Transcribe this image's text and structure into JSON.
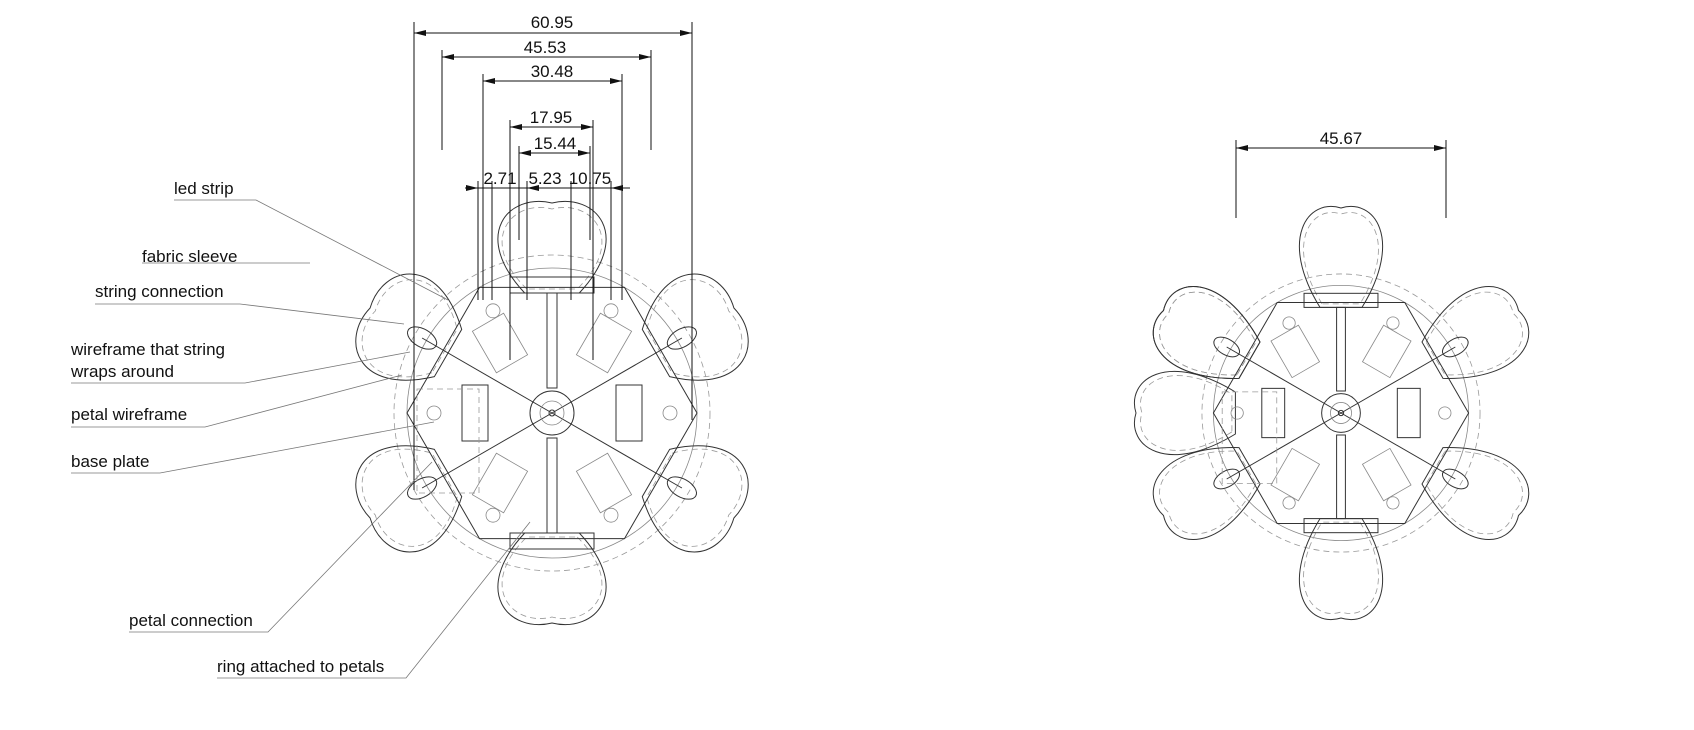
{
  "left_view": {
    "dimensions": [
      "60.95",
      "45.53",
      "30.48",
      "17.95",
      "15.44",
      "2.71",
      "5.23",
      "10.75"
    ],
    "labels": {
      "led_strip": "led strip",
      "fabric_sleeve": "fabric sleeve",
      "string_connection": "string connection",
      "wireframe_line1": "wireframe that string",
      "wireframe_line2": "wraps around",
      "petal_wireframe": "petal wireframe",
      "base_plate": "base plate",
      "petal_connection": "petal connection",
      "ring_attached": "ring attached to petals"
    }
  },
  "right_view": {
    "dimensions": [
      "45.67"
    ]
  }
}
